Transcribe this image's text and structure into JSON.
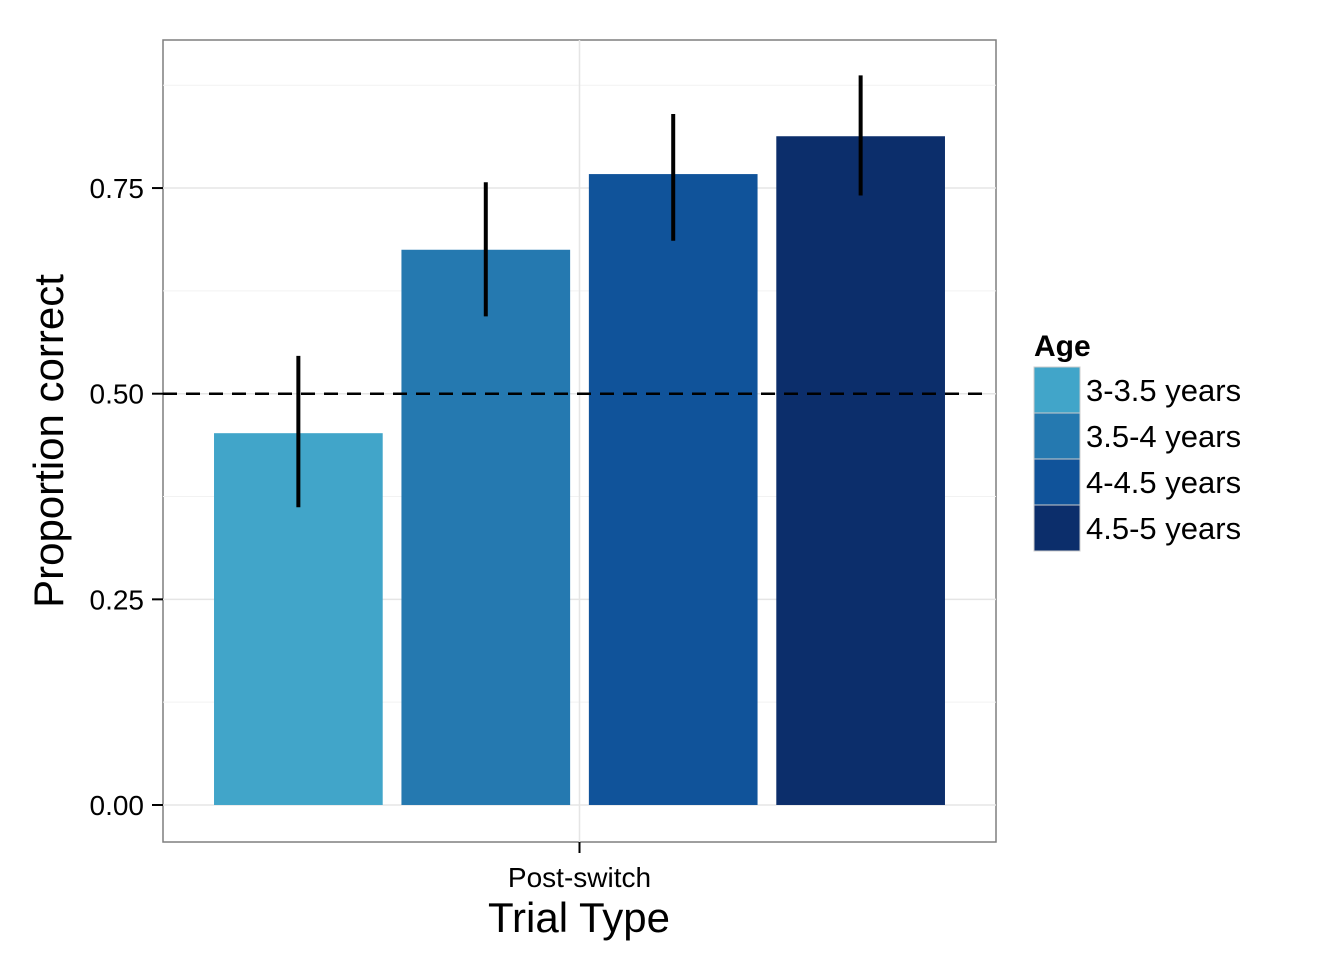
{
  "chart_data": {
    "type": "bar",
    "xlabel": "Trial Type",
    "ylabel": "Proportion correct",
    "categories": [
      "Post-switch"
    ],
    "ylim": [
      -0.045,
      0.93
    ],
    "yticks": [
      0,
      0.25,
      0.5,
      0.75
    ],
    "ytick_labels": [
      "0.00",
      "0.25",
      "0.50",
      "0.75"
    ],
    "reference_line": {
      "y": 0.5,
      "style": "dashed"
    },
    "grid": true,
    "legend": {
      "title": "Age",
      "position": "right"
    },
    "series": [
      {
        "name": "3-3.5 years",
        "values": [
          0.452
        ],
        "error_low": [
          0.362
        ],
        "error_high": [
          0.546
        ],
        "color": "#41A5C9"
      },
      {
        "name": "3.5-4 years",
        "values": [
          0.675
        ],
        "error_low": [
          0.594
        ],
        "error_high": [
          0.757
        ],
        "color": "#2579B0"
      },
      {
        "name": "4-4.5 years",
        "values": [
          0.767
        ],
        "error_low": [
          0.686
        ],
        "error_high": [
          0.84
        ],
        "color": "#10539A"
      },
      {
        "name": "4.5-5 years",
        "values": [
          0.813
        ],
        "error_low": [
          0.741
        ],
        "error_high": [
          0.887
        ],
        "color": "#0C2E6B"
      }
    ]
  }
}
